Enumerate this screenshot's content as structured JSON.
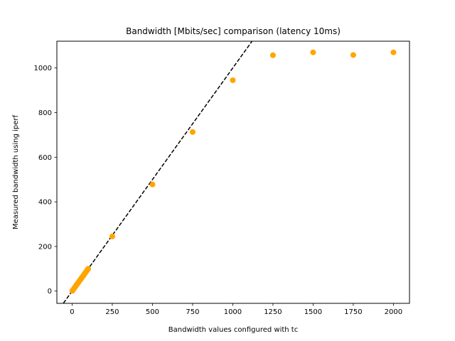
{
  "chart_data": {
    "type": "scatter",
    "title": "Bandwidth [Mbits/sec] comparison (latency 10ms)",
    "xlabel": "Bandwidth values configured with tc",
    "ylabel": "Measured bandwidth using iperf",
    "xlim": [
      -95,
      2100
    ],
    "ylim": [
      -55,
      1120
    ],
    "xticks": [
      0,
      250,
      500,
      750,
      1000,
      1250,
      1500,
      1750,
      2000
    ],
    "yticks": [
      0,
      200,
      400,
      600,
      800,
      1000
    ],
    "grid": false,
    "legend": "none",
    "point_color": "#FFA500",
    "reference_line": {
      "slope": 1,
      "intercept": 0,
      "style": "dashed",
      "color": "#000000"
    },
    "series": [
      {
        "x": [
          1,
          5,
          10,
          15,
          20,
          25,
          30,
          35,
          40,
          45,
          50,
          55,
          60,
          65,
          70,
          75,
          80,
          85,
          90,
          95,
          100,
          250,
          500,
          750,
          1000,
          1250,
          1500,
          1750,
          2000
        ],
        "y": [
          1,
          5,
          10,
          15,
          20,
          25,
          30,
          35,
          40,
          45,
          50,
          55,
          60,
          65,
          70,
          75,
          80,
          85,
          90,
          95,
          100,
          245,
          478,
          713,
          945,
          1057,
          1070,
          1058,
          1070
        ]
      }
    ]
  }
}
